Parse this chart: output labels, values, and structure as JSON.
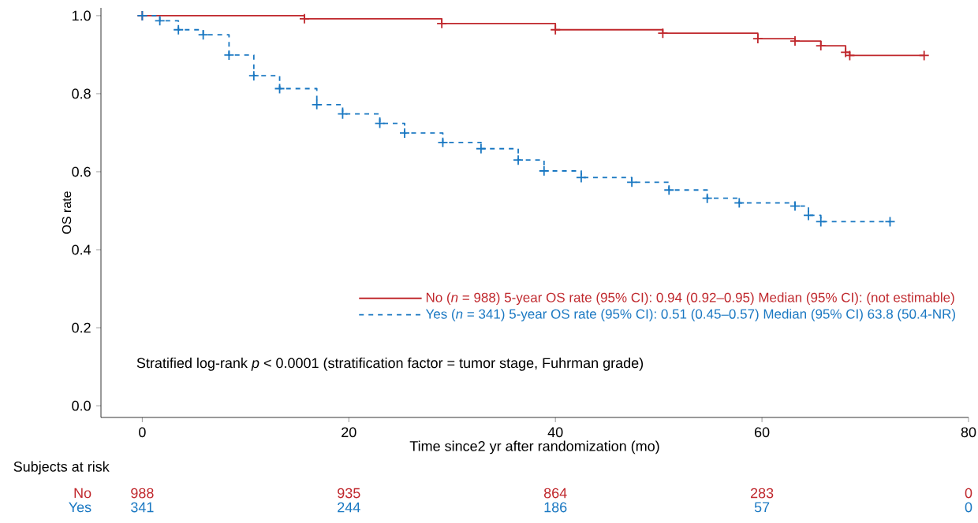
{
  "chart_data": {
    "type": "step",
    "xlabel": "Time since2 yr after randomization (mo)",
    "ylabel": "OS rate",
    "xlim": [
      -4,
      80
    ],
    "ylim": [
      -0.03,
      1.02
    ],
    "xticks": [
      0,
      20,
      40,
      60,
      80
    ],
    "yticks": [
      {
        "value": 0,
        "label": "0.0"
      },
      {
        "value": 0.2,
        "label": "0.2"
      },
      {
        "value": 0.4,
        "label": "0.4"
      },
      {
        "value": 0.6,
        "label": "0.6"
      },
      {
        "value": 0.8,
        "label": "0.8"
      },
      {
        "value": 1,
        "label": "1.0"
      }
    ],
    "grid": false,
    "legend": "bottom right",
    "marker": "cross",
    "series": [
      {
        "name": "No (*n* = 988)  5-year OS rate (95% CI): 0.94 (0.92–0.95)  Median (95% CI): (not estimable)",
        "color": "#c0282d",
        "line_style": "solid",
        "x": [
          0,
          15.7,
          29,
          40,
          50.4,
          59.6,
          63.2,
          65.7,
          68.1,
          68.5,
          75.7
        ],
        "values": [
          1.0,
          0.992,
          0.98,
          0.964,
          0.955,
          0.941,
          0.935,
          0.923,
          0.906,
          0.898,
          0.898
        ]
      },
      {
        "name": "Yes (*n* = 341)  5-year OS rate (95% CI): 0.51 (0.45–0.57)  Median (95% CI) 63.8 (50.4-NR)",
        "color": "#1a78c2",
        "line_style": "dashed",
        "x": [
          0,
          1.7,
          3.5,
          5.9,
          8.4,
          10.8,
          13.3,
          16.9,
          19.4,
          23,
          25.4,
          29.1,
          32.8,
          36.4,
          38.9,
          42.5,
          47.4,
          51,
          54.7,
          57.8,
          63.2,
          64.5,
          65.7,
          72.4
        ],
        "values": [
          1.0,
          0.987,
          0.964,
          0.951,
          0.899,
          0.846,
          0.813,
          0.772,
          0.748,
          0.724,
          0.699,
          0.675,
          0.659,
          0.63,
          0.602,
          0.585,
          0.573,
          0.553,
          0.532,
          0.52,
          0.512,
          0.488,
          0.472,
          0.472
        ]
      }
    ],
    "annotations": [
      "Stratified log-rank *p* < 0.0001 (stratification factor =  tumor stage, Fuhrman grade)",
      "Subjects at risk",
      "No",
      "988",
      "935",
      "864",
      "283",
      "0",
      "Yes",
      "341",
      "244",
      "186",
      "57",
      "0"
    ]
  }
}
